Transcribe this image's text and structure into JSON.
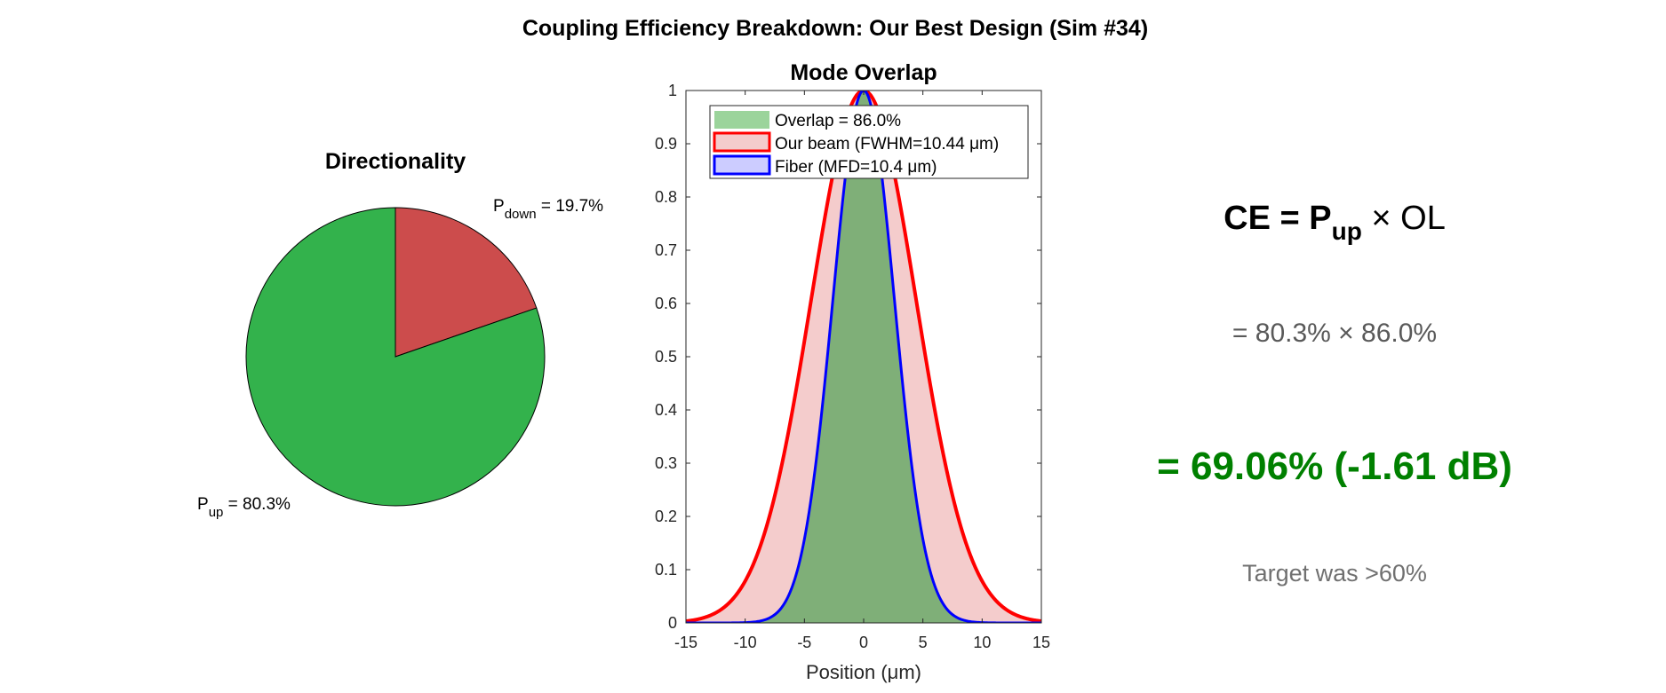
{
  "figure": {
    "title": "Coupling Efficiency Breakdown: Our Best Design (Sim #34)"
  },
  "chart_data": [
    {
      "type": "pie",
      "title": "Directionality",
      "slices": [
        {
          "name": "P",
          "sub": "down",
          "suffix": " = 19.7%",
          "value": 19.7,
          "color": "#CC4C4C"
        },
        {
          "name": "P",
          "sub": "up",
          "suffix": " = 80.3%",
          "value": 80.3,
          "color": "#33B24C"
        }
      ],
      "edge_color": "#000000"
    },
    {
      "type": "area",
      "title": "Mode Overlap",
      "xlabel": "Position (μm)",
      "xlim": [
        -15,
        15
      ],
      "ylim": [
        0,
        1
      ],
      "xticks": [
        -15,
        -10,
        -5,
        0,
        5,
        10,
        15
      ],
      "yticks": [
        0,
        0.1,
        0.2,
        0.3,
        0.4,
        0.5,
        0.6,
        0.7,
        0.8,
        0.9,
        1
      ],
      "legend_position": "top",
      "series": [
        {
          "name": "Overlap = 86.0%",
          "kind": "overlap-fill",
          "fill": "#7FAF78",
          "legend_fill": "#9BD49B"
        },
        {
          "name": "Our beam (FWHM=10.44 μm)",
          "kind": "gaussian",
          "fwhm": 10.44,
          "line": "#FF0000",
          "fill": "#F4CCCC"
        },
        {
          "name": "Fiber (MFD=10.4 μm)",
          "kind": "gaussian",
          "mfd": 10.4,
          "line": "#0000FF",
          "fill": "#CCCCFF"
        }
      ]
    }
  ],
  "equation": {
    "formula_left": "CE = P",
    "formula_sub": "up",
    "formula_right": " × OL",
    "line2": "= 80.3% × 86.0%",
    "result": "= 69.06% (-1.61 dB)",
    "note": "Target was >60%",
    "result_color": "#008000",
    "muted_color": "#595959",
    "note_color": "#707070"
  }
}
